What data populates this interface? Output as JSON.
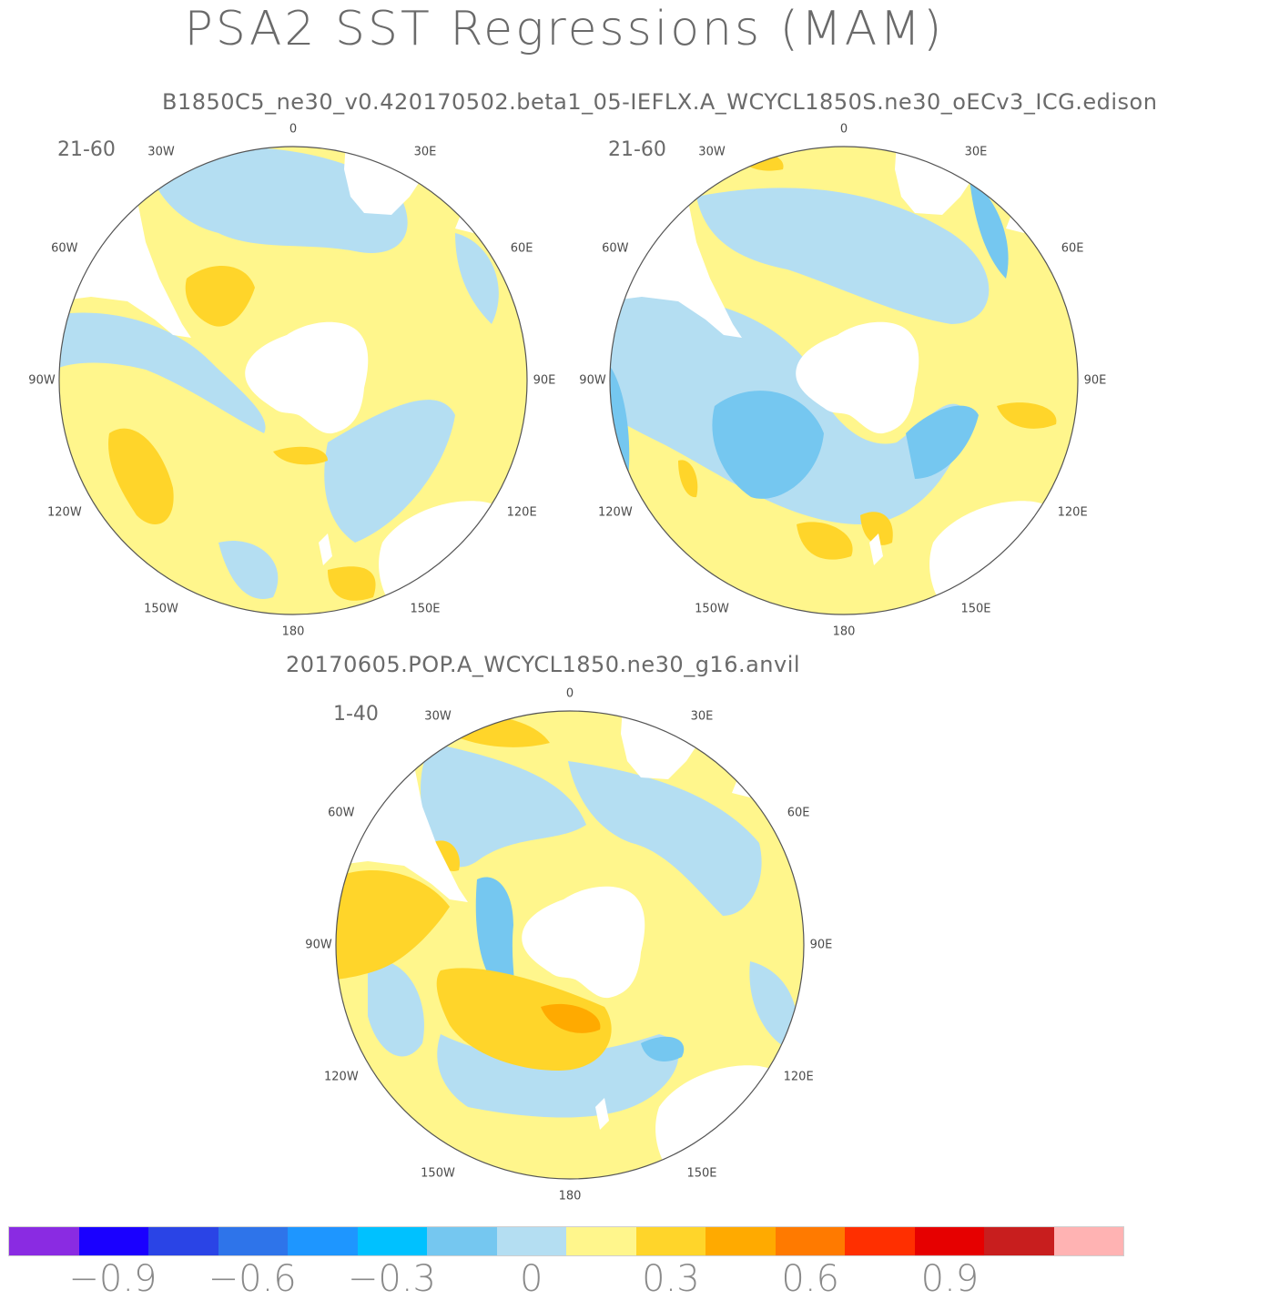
{
  "figure_title": "PSA2 SST Regressions (MAM)",
  "run_titles": {
    "top": "B1850C5_ne30_v0.420170502.beta1_05-IEFLX.A_WCYCL1850S.ne30_oECv3_ICG.edison",
    "bottom": "20170605.POP.A_WCYCL1850.ne30_g16.anvil"
  },
  "panels": [
    {
      "id": "panel-top-left",
      "year_range": "21-60"
    },
    {
      "id": "panel-top-right",
      "year_range": "21-60"
    },
    {
      "id": "panel-bottom",
      "year_range": "1-40"
    }
  ],
  "longitude_labels": [
    "0",
    "30E",
    "60E",
    "90E",
    "120E",
    "150E",
    "180",
    "150W",
    "120W",
    "90W",
    "60W",
    "30W"
  ],
  "colorbar": {
    "colors": [
      "#8a2be2",
      "#1a00ff",
      "#2a44e6",
      "#2e74ea",
      "#1e96ff",
      "#00c1ff",
      "#75c7f0",
      "#b4def2",
      "#fff68c",
      "#ffd52a",
      "#ffaa00",
      "#ff7a00",
      "#ff2f00",
      "#e60000",
      "#c81e1e",
      "#ffb3b3"
    ],
    "tick_labels": [
      "−0.9",
      "−0.6",
      "−0.3",
      "0",
      "0.3",
      "0.6",
      "0.9"
    ]
  },
  "map_colors": {
    "land": "#ffffff",
    "coast": "#333333",
    "frame": "#555555",
    "blue": "#b4def2",
    "blue2": "#75c7f0",
    "yellow": "#fff68c",
    "yellow2": "#ffd52a",
    "orange": "#ffaa00"
  }
}
